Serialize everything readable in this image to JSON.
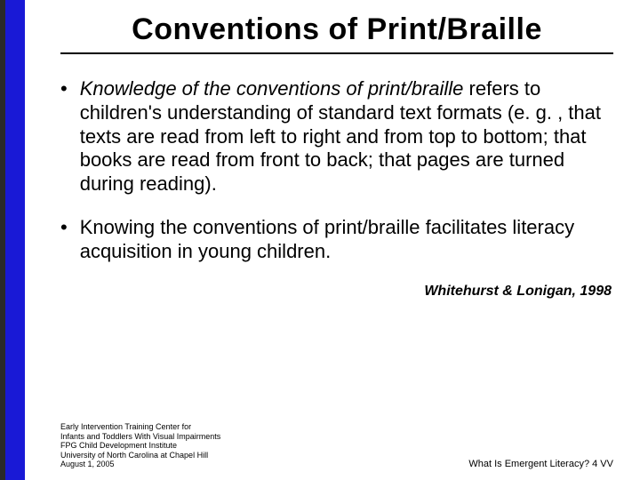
{
  "colors": {
    "blue_bar": "#1919d6",
    "shadow_bar": "#2a2a2a",
    "background": "#ffffff",
    "text": "#000000"
  },
  "title": "Conventions of Print/Braille",
  "bullets": [
    {
      "italic_lead": "Knowledge of the conventions of print/braille",
      "rest": " refers to children's understanding of standard text formats (e. g. , that texts are read from left to right and from top to bottom; that books are read from front to back; that pages are turned during reading)."
    },
    {
      "italic_lead": "",
      "rest": "Knowing the conventions of print/braille facilitates literacy acquisition in young children."
    }
  ],
  "citation": "Whitehurst & Lonigan, 1998",
  "footer_left_lines": [
    "Early Intervention Training Center for",
    "Infants and Toddlers With Visual Impairments",
    "FPG Child Development Institute",
    "University of North Carolina at Chapel Hill",
    "August 1, 2005"
  ],
  "footer_right": "What Is Emergent Literacy?  4 VV"
}
